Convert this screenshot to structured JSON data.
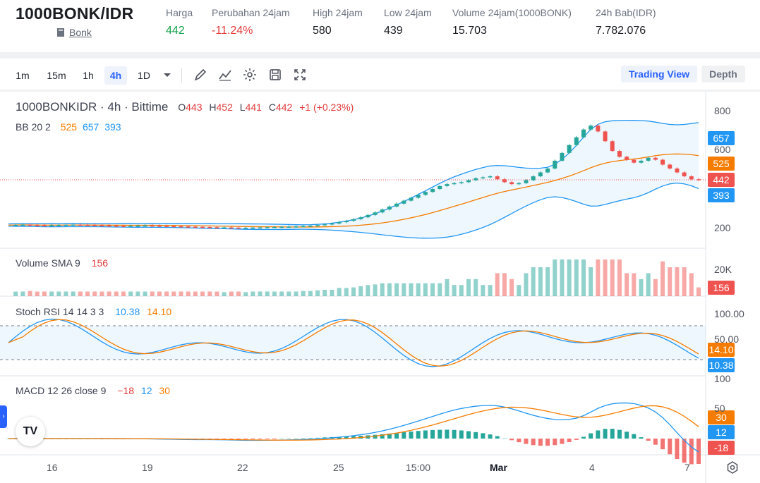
{
  "header": {
    "pair": "1000BONK/IDR",
    "coin_link": "Bonk",
    "stats": [
      {
        "label": "Harga",
        "value": "442",
        "tone": "green"
      },
      {
        "label": "Perubahan 24jam",
        "value": "-11.24%",
        "tone": "red"
      },
      {
        "label": "High 24jam",
        "value": "580",
        "tone": "plain"
      },
      {
        "label": "Low 24jam",
        "value": "439",
        "tone": "plain"
      },
      {
        "label": "Volume 24jam(1000BONK)",
        "value": "15.703",
        "tone": "plain"
      },
      {
        "label": "24h Bab(IDR)",
        "value": "7.782.076",
        "tone": "plain"
      }
    ]
  },
  "toolbar": {
    "timeframes": [
      "1m",
      "15m",
      "1h",
      "4h",
      "1D"
    ],
    "active_timeframe": "4h",
    "icons": [
      "chevron-down-icon",
      "draw-pen-icon",
      "indicators-icon",
      "settings-gear-icon",
      "save-icon",
      "fullscreen-icon"
    ],
    "views": {
      "trading_view": "Trading View",
      "depth": "Depth"
    }
  },
  "legend": {
    "symbol": "1000BONKIDR · 4h · Bittime",
    "o_label": "O",
    "o_value": "443",
    "h_label": "H",
    "h_value": "452",
    "l_label": "L",
    "l_value": "441",
    "c_label": "C",
    "c_value": "442",
    "change": "+1 (+0.23%)",
    "bb_label": "BB 20 2",
    "bb_basis": "525",
    "bb_upper": "657",
    "bb_lower": "393",
    "vol_label": "Volume SMA 9",
    "vol_value": "156",
    "stoch_label": "Stoch RSI 14 14 3 3",
    "stoch_k": "10.38",
    "stoch_d": "14.10",
    "macd_label": "MACD 12 26 close 9",
    "macd_hist": "−18",
    "macd_line": "12",
    "macd_signal": "30"
  },
  "axes": {
    "price_ticks": [
      "800",
      "600",
      "200"
    ],
    "volume_ticks": [
      "20K"
    ],
    "stoch_ticks": [
      "100.00",
      "50.00"
    ],
    "macd_ticks": [
      "100",
      "50"
    ],
    "time_ticks": [
      "16",
      "19",
      "22",
      "25",
      "15:00",
      "Mar",
      "4",
      "7"
    ]
  },
  "badges": {
    "price_upper": "657",
    "price_basis": "525",
    "price_last": "442",
    "price_lower": "393",
    "volume": "156",
    "stoch_d": "14.10",
    "stoch_k": "10.38",
    "macd_signal": "30",
    "macd_line": "12",
    "macd_hist": "-18"
  },
  "colors": {
    "up": "#26a69a",
    "down": "#ef5350",
    "orange": "#f57c00",
    "blue": "#2196f3",
    "accent": "#2962ff"
  },
  "chart_data": {
    "type": "candlestick",
    "timeframe": "4h",
    "price_range": [
      150,
      850
    ],
    "last_close": 442,
    "closes_approx": [
      210,
      211,
      212,
      210,
      209,
      208,
      209,
      210,
      211,
      212,
      211,
      210,
      209,
      208,
      207,
      206,
      205,
      206,
      207,
      208,
      207,
      206,
      205,
      204,
      203,
      202,
      201,
      200,
      199,
      198,
      198,
      197,
      196,
      196,
      197,
      198,
      199,
      200,
      201,
      202,
      203,
      205,
      207,
      210,
      214,
      218,
      225,
      232,
      240,
      250,
      262,
      275,
      290,
      305,
      320,
      335,
      350,
      365,
      380,
      395,
      410,
      420,
      425,
      430,
      440,
      450,
      455,
      460,
      445,
      430,
      420,
      425,
      440,
      460,
      480,
      500,
      540,
      580,
      620,
      660,
      700,
      720,
      690,
      640,
      590,
      560,
      545,
      530,
      540,
      555,
      545,
      520,
      500,
      480,
      460,
      445,
      442
    ],
    "stoch_rsi": {
      "k": 10.38,
      "d": 14.1
    },
    "macd": {
      "macd": 12,
      "signal": 30,
      "histogram": -18
    },
    "volume_sma": 156
  }
}
